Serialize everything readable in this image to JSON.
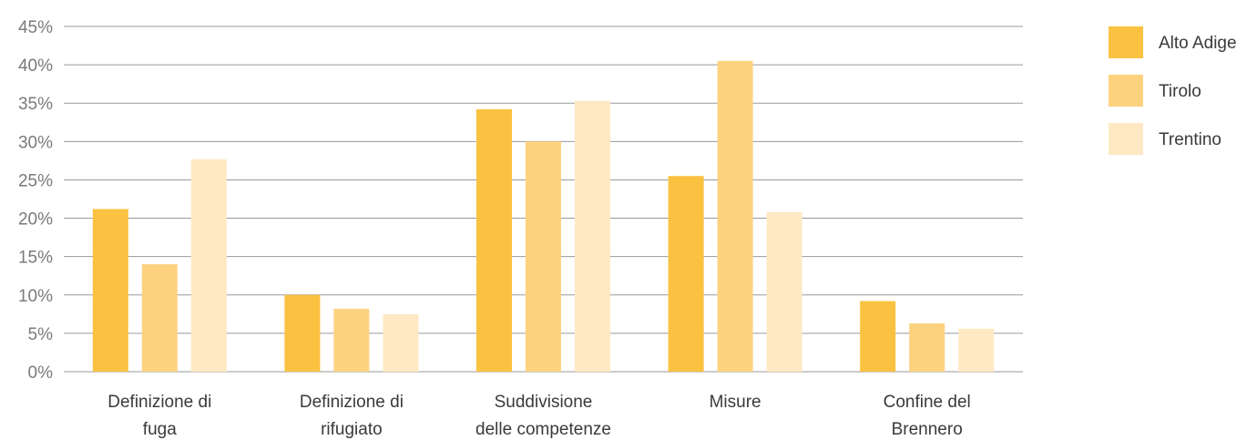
{
  "chart_data": {
    "type": "bar",
    "title": "",
    "xlabel": "",
    "ylabel": "",
    "ylim": [
      0,
      45
    ],
    "y_ticks": [
      0,
      5,
      10,
      15,
      20,
      25,
      30,
      35,
      40,
      45
    ],
    "y_tick_labels": [
      "0%",
      "5%",
      "10%",
      "15%",
      "20%",
      "25%",
      "30%",
      "35%",
      "40%",
      "45%"
    ],
    "grid": true,
    "legend_position": "top-right",
    "categories": [
      [
        "Definizione di",
        "fuga"
      ],
      [
        "Definizione di",
        "rifugiato"
      ],
      [
        "Suddivisione",
        "delle competenze"
      ],
      [
        "Misure"
      ],
      [
        "Confine del",
        "Brennero"
      ]
    ],
    "series": [
      {
        "name": "Alto Adige",
        "color": "#fbc241",
        "values": [
          21.2,
          10.0,
          34.2,
          25.5,
          9.2
        ]
      },
      {
        "name": "Tirolo",
        "color": "#fdd27f",
        "values": [
          14.0,
          8.2,
          30.0,
          40.5,
          6.3
        ]
      },
      {
        "name": "Trentino",
        "color": "#fee9c4",
        "values": [
          27.7,
          7.5,
          35.3,
          20.8,
          5.6
        ]
      }
    ]
  }
}
